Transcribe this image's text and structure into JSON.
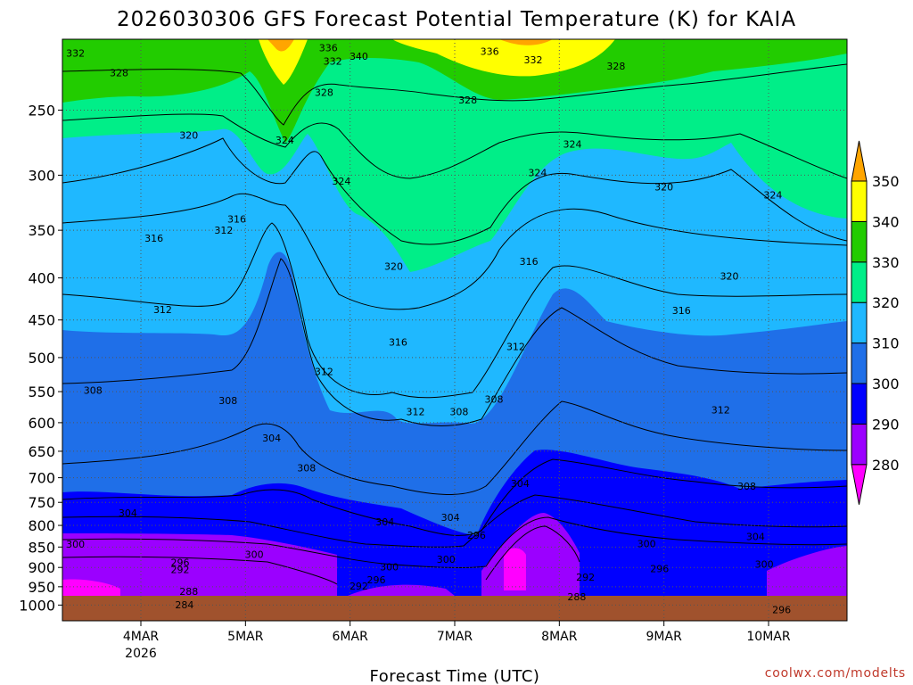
{
  "chart_data": {
    "type": "heatmap",
    "title": "2026030306 GFS Forecast Potential Temperature (K) for KAIA",
    "xlabel": "Forecast Time (UTC)",
    "ylabel": "",
    "y_axis": {
      "scale": "log-pressure",
      "ylim": [
        1045,
        205
      ],
      "ticks": [
        250,
        300,
        350,
        400,
        450,
        500,
        550,
        600,
        650,
        700,
        750,
        800,
        850,
        900,
        950,
        1000
      ]
    },
    "x_axis": {
      "xlim_hours_from_init": [
        0,
        180
      ],
      "ticks": [
        {
          "label": "4MAR",
          "sub": "2026",
          "hour": 18
        },
        {
          "label": "5MAR",
          "sub": "",
          "hour": 42
        },
        {
          "label": "6MAR",
          "sub": "",
          "hour": 66
        },
        {
          "label": "7MAR",
          "sub": "",
          "hour": 90
        },
        {
          "label": "8MAR",
          "sub": "",
          "hour": 114
        },
        {
          "label": "9MAR",
          "sub": "",
          "hour": 138
        },
        {
          "label": "10MAR",
          "sub": "",
          "hour": 162
        }
      ]
    },
    "colorbar": {
      "levels": [
        280,
        290,
        300,
        310,
        320,
        330,
        340,
        350
      ],
      "bands": [
        {
          "range": "<280",
          "color": "#ff00ff"
        },
        {
          "range": "280-290",
          "color": "#9b00ff"
        },
        {
          "range": "290-300",
          "color": "#0000ff"
        },
        {
          "range": "300-310",
          "color": "#1f6fe8"
        },
        {
          "range": "310-320",
          "color": "#1fb8ff"
        },
        {
          "range": "320-330",
          "color": "#00ee88"
        },
        {
          "range": "330-340",
          "color": "#22cc00"
        },
        {
          "range": "340-350",
          "color": "#ffff00"
        },
        {
          "range": ">350",
          "color": "#ffa500"
        }
      ]
    },
    "ground_color": "#a0522d",
    "contour_interval_K": 4,
    "contour_labels": [
      {
        "value": "332",
        "hour": 3,
        "p": 213
      },
      {
        "value": "328",
        "hour": 13,
        "p": 225
      },
      {
        "value": "336",
        "hour": 61,
        "p": 210
      },
      {
        "value": "332",
        "hour": 62,
        "p": 218
      },
      {
        "value": "340",
        "hour": 68,
        "p": 215
      },
      {
        "value": "328",
        "hour": 60,
        "p": 238
      },
      {
        "value": "328",
        "hour": 93,
        "p": 243
      },
      {
        "value": "336",
        "hour": 98,
        "p": 212
      },
      {
        "value": "332",
        "hour": 108,
        "p": 217
      },
      {
        "value": "328",
        "hour": 127,
        "p": 221
      },
      {
        "value": "324",
        "hour": 117,
        "p": 275
      },
      {
        "value": "324",
        "hour": 51,
        "p": 272
      },
      {
        "value": "320",
        "hour": 29,
        "p": 268
      },
      {
        "value": "324",
        "hour": 64,
        "p": 305
      },
      {
        "value": "324",
        "hour": 163,
        "p": 317
      },
      {
        "value": "324",
        "hour": 109,
        "p": 298
      },
      {
        "value": "320",
        "hour": 138,
        "p": 310
      },
      {
        "value": "316",
        "hour": 40,
        "p": 339
      },
      {
        "value": "312",
        "hour": 37,
        "p": 350
      },
      {
        "value": "316",
        "hour": 21,
        "p": 358
      },
      {
        "value": "320",
        "hour": 76,
        "p": 387
      },
      {
        "value": "320",
        "hour": 153,
        "p": 398
      },
      {
        "value": "316",
        "hour": 107,
        "p": 382
      },
      {
        "value": "316",
        "hour": 142,
        "p": 438
      },
      {
        "value": "312",
        "hour": 23,
        "p": 437
      },
      {
        "value": "316",
        "hour": 77,
        "p": 479
      },
      {
        "value": "312",
        "hour": 104,
        "p": 485
      },
      {
        "value": "312",
        "hour": 60,
        "p": 520
      },
      {
        "value": "308",
        "hour": 7,
        "p": 548
      },
      {
        "value": "308",
        "hour": 38,
        "p": 564
      },
      {
        "value": "308",
        "hour": 99,
        "p": 562
      },
      {
        "value": "312",
        "hour": 81,
        "p": 582
      },
      {
        "value": "308",
        "hour": 91,
        "p": 582
      },
      {
        "value": "312",
        "hour": 151,
        "p": 579
      },
      {
        "value": "304",
        "hour": 48,
        "p": 626
      },
      {
        "value": "308",
        "hour": 56,
        "p": 681
      },
      {
        "value": "304",
        "hour": 105,
        "p": 711
      },
      {
        "value": "308",
        "hour": 157,
        "p": 717
      },
      {
        "value": "304",
        "hour": 15,
        "p": 772
      },
      {
        "value": "304",
        "hour": 74,
        "p": 792
      },
      {
        "value": "304",
        "hour": 89,
        "p": 782
      },
      {
        "value": "296",
        "hour": 95,
        "p": 822
      },
      {
        "value": "300",
        "hour": 134,
        "p": 842
      },
      {
        "value": "304",
        "hour": 159,
        "p": 825
      },
      {
        "value": "300",
        "hour": 3,
        "p": 843
      },
      {
        "value": "300",
        "hour": 44,
        "p": 868
      },
      {
        "value": "300",
        "hour": 88,
        "p": 880
      },
      {
        "value": "296",
        "hour": 27,
        "p": 887
      },
      {
        "value": "292",
        "hour": 27,
        "p": 905
      },
      {
        "value": "296",
        "hour": 137,
        "p": 903
      },
      {
        "value": "300",
        "hour": 161,
        "p": 892
      },
      {
        "value": "300",
        "hour": 75,
        "p": 898
      },
      {
        "value": "296",
        "hour": 72,
        "p": 931
      },
      {
        "value": "292",
        "hour": 68,
        "p": 948
      },
      {
        "value": "292",
        "hour": 120,
        "p": 925
      },
      {
        "value": "288",
        "hour": 29,
        "p": 962
      },
      {
        "value": "288",
        "hour": 118,
        "p": 977
      },
      {
        "value": "284",
        "hour": 28,
        "p": 999
      },
      {
        "value": "296",
        "hour": 165,
        "p": 1013
      }
    ]
  },
  "credit": "coolwx.com/modelts"
}
